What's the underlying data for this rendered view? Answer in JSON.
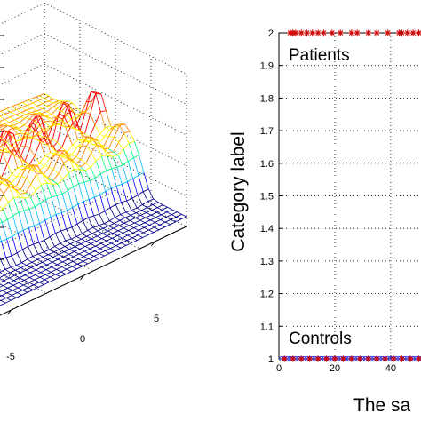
{
  "chart_data": [
    {
      "type": "surface",
      "title": "",
      "x_ticks": [
        "-5",
        "0",
        "5"
      ],
      "grid": true,
      "colormap": [
        "#00008b",
        "#0000ff",
        "#00bfff",
        "#00ff7f",
        "#ffff00",
        "#ff8000",
        "#ff0000"
      ]
    },
    {
      "type": "scatter",
      "title": "",
      "xlabel": "The sa",
      "ylabel": "Category label",
      "y_ticks": [
        "1",
        "1.1",
        "1.2",
        "1.3",
        "1.4",
        "1.5",
        "1.6",
        "1.7",
        "1.8",
        "1.9",
        "2"
      ],
      "x_ticks": [
        "0",
        "20",
        "40"
      ],
      "ylim": [
        1,
        2
      ],
      "xlim": [
        0,
        54
      ],
      "grid": true,
      "annotations": [
        "Patients",
        "Controls"
      ],
      "series": [
        {
          "marker": "*",
          "color": "#cc0000",
          "y": 2,
          "x": [
            4,
            5,
            6,
            8,
            10,
            12,
            14,
            16,
            19,
            22,
            26,
            28,
            32,
            35,
            39,
            43,
            44,
            46,
            48,
            50,
            52
          ]
        },
        {
          "marker": "o",
          "color": "#3344ff",
          "y": 1,
          "x": [
            1,
            2,
            3,
            4,
            5,
            6,
            7,
            8,
            9,
            10,
            11,
            12,
            13,
            14,
            15,
            16,
            17,
            18,
            19,
            20,
            21,
            22,
            23,
            24,
            25,
            26,
            27,
            28,
            29,
            30,
            31,
            32,
            33,
            34,
            35,
            36,
            37,
            38,
            39,
            40,
            41,
            42,
            43,
            44,
            45,
            46,
            47,
            48,
            49,
            50,
            51,
            52
          ]
        },
        {
          "marker": "*",
          "color": "#cc0000",
          "y": 1,
          "x": [
            2,
            5,
            8,
            11,
            14,
            17,
            20,
            23,
            26,
            29,
            32,
            35,
            38,
            41,
            44,
            47,
            50
          ]
        }
      ]
    }
  ]
}
